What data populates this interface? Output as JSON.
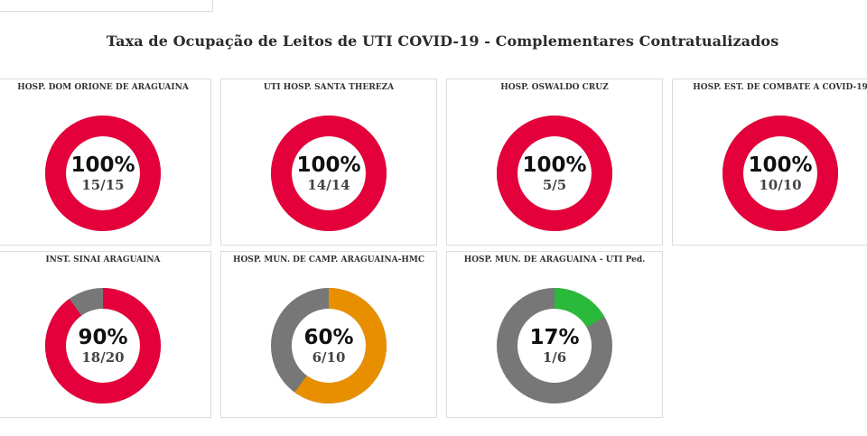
{
  "page": {
    "title": "Taxa de Ocupação de Leitos de UTI COVID-19 - Complementares Contratualizados"
  },
  "colors": {
    "high": "#e4003a",
    "medium": "#e88f00",
    "low": "#2ab93a",
    "free": "#777777"
  },
  "chart_data": [
    {
      "type": "pie",
      "title": "HOSP. DOM ORIONE DE ARAGUAINA",
      "percent_label": "100%",
      "ratio_label": "15/15",
      "occupied": 15,
      "total": 15,
      "color": "#e4003a"
    },
    {
      "type": "pie",
      "title": "UTI HOSP. SANTA THEREZA",
      "percent_label": "100%",
      "ratio_label": "14/14",
      "occupied": 14,
      "total": 14,
      "color": "#e4003a"
    },
    {
      "type": "pie",
      "title": "HOSP. OSWALDO CRUZ",
      "percent_label": "100%",
      "ratio_label": "5/5",
      "occupied": 5,
      "total": 5,
      "color": "#e4003a"
    },
    {
      "type": "pie",
      "title": "HOSP. EST. DE COMBATE A COVID-19",
      "percent_label": "100%",
      "ratio_label": "10/10",
      "occupied": 10,
      "total": 10,
      "color": "#e4003a"
    },
    {
      "type": "pie",
      "title": "INST. SINAI ARAGUAINA",
      "percent_label": "90%",
      "ratio_label": "18/20",
      "occupied": 18,
      "total": 20,
      "color": "#e4003a"
    },
    {
      "type": "pie",
      "title": "HOSP. MUN.  DE CAMP. ARAGUAINA-HMC",
      "percent_label": "60%",
      "ratio_label": "6/10",
      "occupied": 6,
      "total": 10,
      "color": "#e88f00"
    },
    {
      "type": "pie",
      "title": "HOSP. MUN. DE ARAGUAINA - UTI Ped.",
      "percent_label": "17%",
      "ratio_label": "1/6",
      "occupied": 1,
      "total": 6,
      "color": "#2ab93a"
    }
  ]
}
